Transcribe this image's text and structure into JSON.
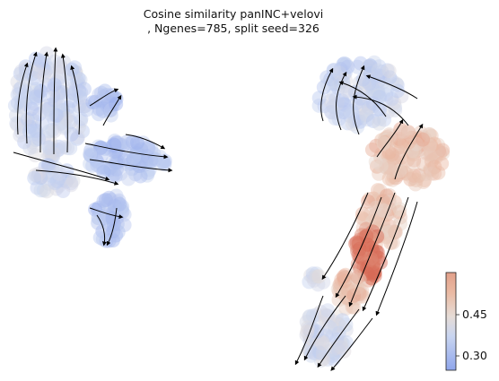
{
  "chart_data": {
    "type": "scatter",
    "title_lines": [
      "Cosine similarity panINC+velovi",
      ", Ngenes=785, split seed=326"
    ],
    "xlabel": "",
    "ylabel": "",
    "colorbar": {
      "cmap": "coolwarm",
      "range": [
        0.26,
        0.55
      ],
      "ticks": [
        0.3,
        0.45
      ],
      "tick_labels": [
        "0.30",
        "0.45"
      ]
    },
    "clusters": [
      {
        "name": "upper-left lobe",
        "approx_value": 0.36
      },
      {
        "name": "left arm",
        "approx_value": 0.32
      },
      {
        "name": "upper-right lobe",
        "approx_value": 0.36
      },
      {
        "name": "stalk",
        "approx_value": 0.47
      },
      {
        "name": "stalk core",
        "approx_value": 0.54
      },
      {
        "name": "lower tip",
        "approx_value": 0.38
      }
    ],
    "grid": false,
    "overlay": "velocity streamlines"
  }
}
